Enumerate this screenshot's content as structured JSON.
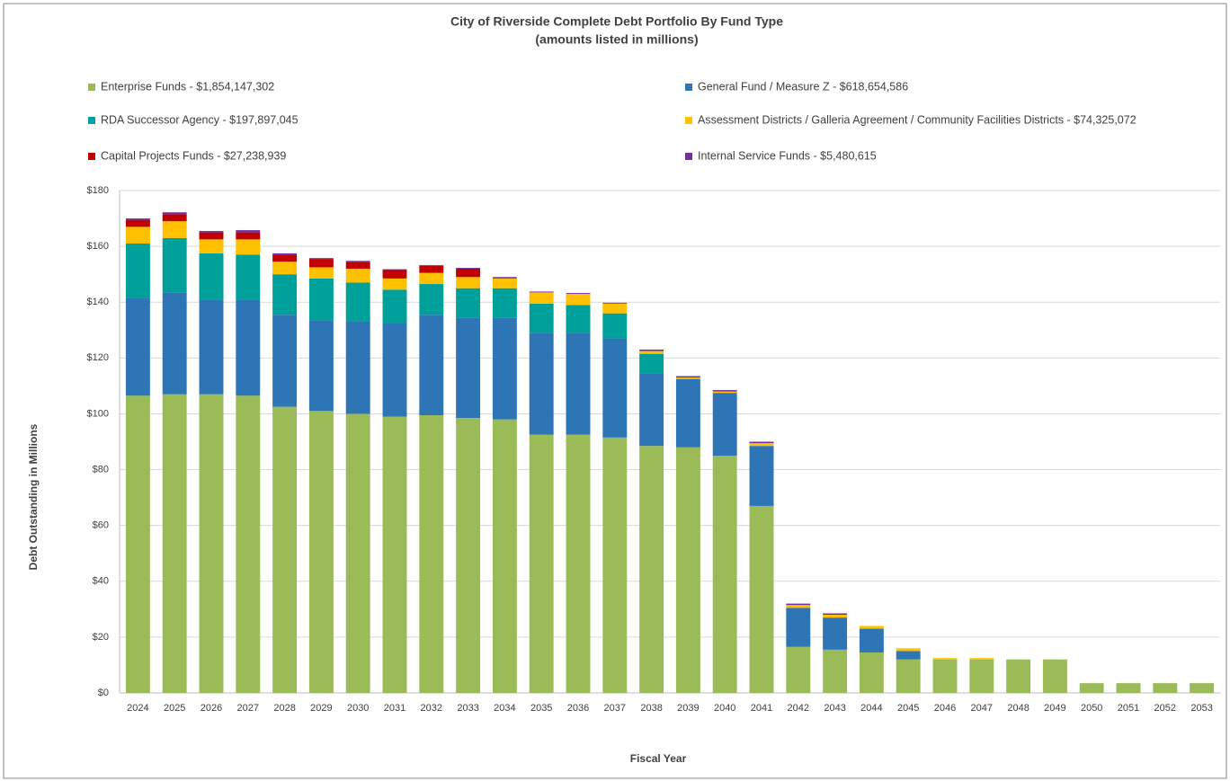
{
  "chart_data": {
    "type": "stacked_bar",
    "title": "City of Riverside Complete Debt Portfolio By Fund Type",
    "subtitle": "(amounts listed in millions)",
    "x_label": "Fiscal Year",
    "y_label": "Debt Outstanding in Millions",
    "categories": [
      "2024",
      "2025",
      "2026",
      "2027",
      "2028",
      "2029",
      "2030",
      "2031",
      "2032",
      "2033",
      "2034",
      "2035",
      "2036",
      "2037",
      "2038",
      "2039",
      "2040",
      "2041",
      "2042",
      "2043",
      "2044",
      "2045",
      "2046",
      "2047",
      "2048",
      "2049",
      "2050",
      "2051",
      "2052",
      "2053"
    ],
    "series": [
      {
        "name": "Enterprise Funds - $1,854,147,302",
        "color": "#9bbb59",
        "values": [
          106.5,
          107,
          107,
          106.5,
          102.5,
          101,
          100,
          99,
          99.5,
          98.5,
          98,
          92.5,
          92.5,
          91.5,
          88.5,
          88,
          85,
          67,
          16.5,
          15.5,
          14.5,
          12,
          12,
          12,
          12,
          12,
          3.5,
          3.5,
          3.5,
          3.5
        ]
      },
      {
        "name": "General Fund / Measure Z - $618,654,586",
        "color": "#2e75b6",
        "values": [
          35,
          36.5,
          34,
          34.5,
          33,
          32.5,
          33,
          33.5,
          36,
          36,
          36.5,
          36.5,
          36.5,
          35.5,
          26,
          24.5,
          22.5,
          21.5,
          14,
          11.5,
          8.5,
          3,
          0,
          0,
          0,
          0,
          0,
          0,
          0,
          0
        ]
      },
      {
        "name": "RDA Successor Agency - $197,897,045",
        "color": "#00a09a",
        "values": [
          19.5,
          19.5,
          16.5,
          16,
          14.5,
          15,
          14,
          12,
          11,
          10.5,
          10.5,
          10.5,
          10,
          9,
          7,
          0,
          0,
          0,
          0,
          0,
          0,
          0,
          0,
          0,
          0,
          0,
          0,
          0,
          0,
          0
        ]
      },
      {
        "name": "Assessment Districts / Galleria Agreement / Community Facilities Districts - $74,325,072",
        "color": "#ffc000",
        "values": [
          6,
          6,
          5,
          5.5,
          4.5,
          4,
          5,
          4,
          4,
          4,
          3.5,
          4,
          4,
          3.5,
          1,
          0.5,
          0.5,
          1,
          1,
          1,
          1,
          1,
          0.5,
          0.5,
          0,
          0,
          0,
          0,
          0,
          0
        ]
      },
      {
        "name": "Capital Projects Funds - $27,238,939",
        "color": "#c00000",
        "values": [
          2.5,
          2.5,
          2.5,
          2.5,
          2.5,
          3,
          2.5,
          3,
          2.5,
          3,
          0,
          0,
          0,
          0,
          0,
          0,
          0,
          0,
          0,
          0,
          0,
          0,
          0,
          0,
          0,
          0,
          0,
          0,
          0,
          0
        ]
      },
      {
        "name": "Internal Service Funds - $5,480,615",
        "color": "#7030a0",
        "values": [
          0.5,
          0.7,
          0.5,
          0.8,
          0.5,
          0.3,
          0.3,
          0.3,
          0.3,
          0.3,
          0.5,
          0.3,
          0.3,
          0.3,
          0.5,
          0.5,
          0.5,
          0.5,
          0.5,
          0.5,
          0,
          0,
          0,
          0,
          0,
          0,
          0,
          0,
          0,
          0
        ]
      }
    ],
    "ylim": [
      0,
      180
    ],
    "yticks": [
      {
        "value": 0,
        "label": "$0"
      },
      {
        "value": 20,
        "label": "$20"
      },
      {
        "value": 40,
        "label": "$40"
      },
      {
        "value": 60,
        "label": "$60"
      },
      {
        "value": 80,
        "label": "$80"
      },
      {
        "value": 100,
        "label": "$100"
      },
      {
        "value": 120,
        "label": "$120"
      },
      {
        "value": 140,
        "label": "$140"
      },
      {
        "value": 160,
        "label": "$160"
      },
      {
        "value": 180,
        "label": "$180"
      }
    ],
    "grid": true
  }
}
